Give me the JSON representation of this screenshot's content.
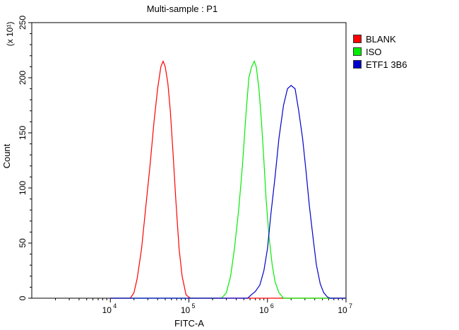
{
  "chart_data": {
    "type": "line",
    "title": "Multi-sample : P1",
    "xlabel": "FITC-A",
    "ylabel": "Count",
    "y_multiplier": "(x 10¹)",
    "x_scale": "log",
    "xlim": [
      1000,
      10000000
    ],
    "ylim": [
      0,
      2500
    ],
    "x_ticks": [
      {
        "value": 10000,
        "base": "10",
        "exp": "4"
      },
      {
        "value": 100000,
        "base": "10",
        "exp": "5"
      },
      {
        "value": 1000000,
        "base": "10",
        "exp": "6"
      },
      {
        "value": 10000000,
        "base": "10",
        "exp": "7"
      }
    ],
    "y_ticks": [
      {
        "value": 0,
        "label": "0"
      },
      {
        "value": 500,
        "label": "50"
      },
      {
        "value": 1000,
        "label": "100"
      },
      {
        "value": 1500,
        "label": "150"
      },
      {
        "value": 2000,
        "label": "200"
      },
      {
        "value": 2500,
        "label": "250"
      }
    ],
    "grid": false,
    "legend_position": "top-right",
    "series": [
      {
        "name": "BLANK",
        "color": "#ff0000",
        "x": [
          10000,
          14000,
          18000,
          20000,
          22000,
          25000,
          28000,
          32000,
          36000,
          40000,
          44000,
          47000,
          50000,
          54000,
          58000,
          63000,
          68000,
          75000,
          82000,
          92000,
          104000,
          1000000,
          10000000
        ],
        "y": [
          0,
          0,
          0,
          50,
          180,
          450,
          800,
          1200,
          1600,
          1900,
          2100,
          2150,
          2100,
          1950,
          1700,
          1300,
          900,
          450,
          200,
          30,
          0,
          0,
          0
        ]
      },
      {
        "name": "ISO",
        "color": "#00ee00",
        "x": [
          10000,
          100000,
          260000,
          300000,
          340000,
          380000,
          430000,
          480000,
          530000,
          580000,
          630000,
          680000,
          720000,
          780000,
          840000,
          900000,
          960000,
          1050000,
          1150000,
          1250000,
          1400000,
          1600000,
          10000000
        ],
        "y": [
          0,
          0,
          0,
          50,
          200,
          450,
          800,
          1200,
          1650,
          2000,
          2100,
          2150,
          2100,
          1900,
          1600,
          1250,
          900,
          550,
          300,
          150,
          50,
          0,
          0
        ]
      },
      {
        "name": "ETF1 3B6",
        "color": "#0000cc",
        "x": [
          10000,
          100000,
          560000,
          620000,
          700000,
          800000,
          900000,
          1000000,
          1100000,
          1250000,
          1400000,
          1600000,
          1800000,
          2000000,
          2250000,
          2500000,
          2800000,
          3100000,
          3400000,
          3800000,
          4200000,
          4700000,
          5200000,
          5800000,
          6300000,
          10000000
        ],
        "y": [
          0,
          0,
          0,
          30,
          60,
          120,
          250,
          450,
          750,
          1100,
          1450,
          1750,
          1900,
          1930,
          1900,
          1700,
          1450,
          1150,
          850,
          550,
          300,
          130,
          50,
          10,
          0,
          0
        ]
      }
    ]
  }
}
